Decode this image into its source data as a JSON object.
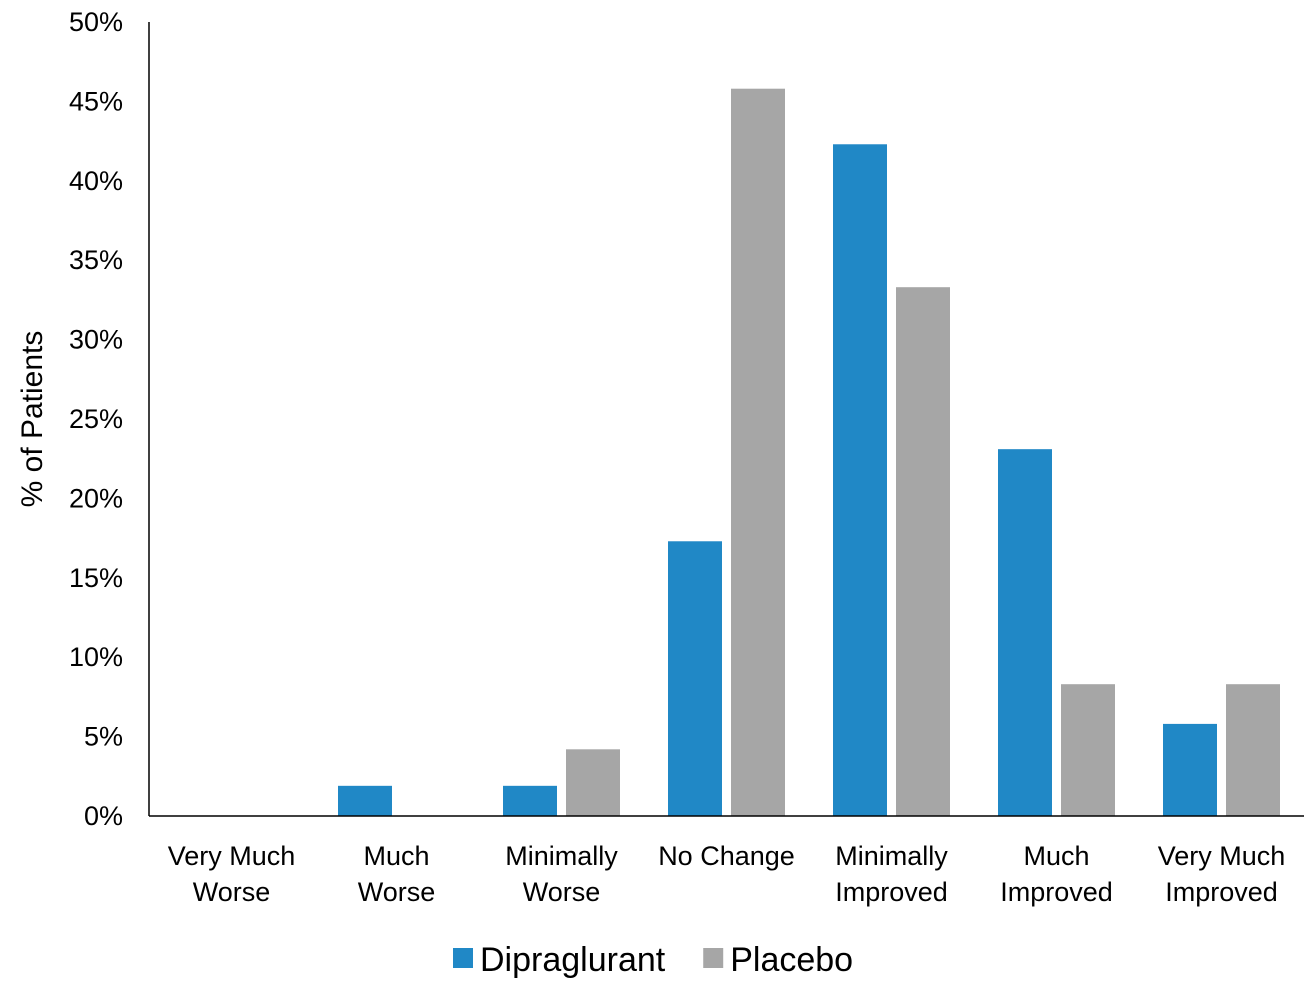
{
  "chart_data": {
    "type": "bar",
    "title": "",
    "xlabel": "",
    "ylabel": "% of Patients",
    "ylim": [
      0,
      50
    ],
    "y_ticks": [
      "0%",
      "5%",
      "10%",
      "15%",
      "20%",
      "25%",
      "30%",
      "35%",
      "40%",
      "45%",
      "50%"
    ],
    "y_tick_values": [
      0,
      5,
      10,
      15,
      20,
      25,
      30,
      35,
      40,
      45,
      50
    ],
    "grid": false,
    "legend_position": "bottom",
    "categories": [
      [
        "Very Much",
        "Worse"
      ],
      [
        "Much",
        "Worse"
      ],
      [
        "Minimally",
        "Worse"
      ],
      [
        "No Change"
      ],
      [
        "Minimally",
        "Improved"
      ],
      [
        "Much",
        "Improved"
      ],
      [
        "Very Much",
        "Improved"
      ]
    ],
    "series": [
      {
        "name": "Dipraglurant",
        "color": "#2088C6",
        "values": [
          0,
          1.9,
          1.9,
          17.3,
          42.3,
          23.1,
          5.8
        ]
      },
      {
        "name": "Placebo",
        "color": "#A6A6A6",
        "values": [
          0,
          0,
          4.2,
          45.8,
          33.3,
          8.3,
          8.3
        ]
      }
    ]
  }
}
